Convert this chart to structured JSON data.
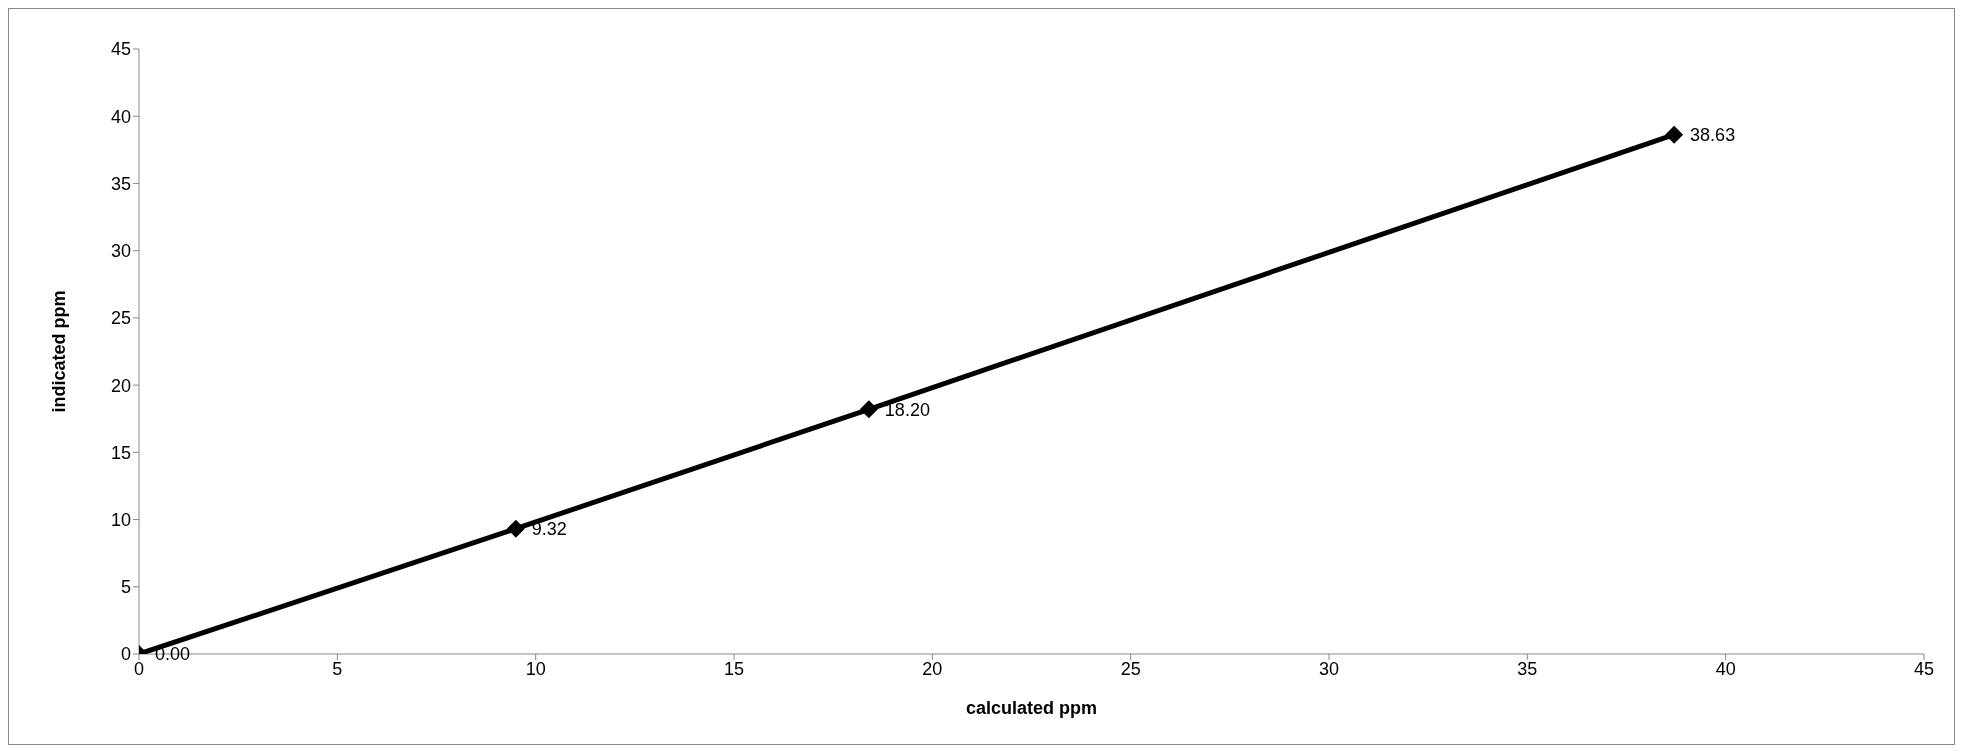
{
  "chart_data": {
    "type": "line",
    "xlabel": "calculated ppm",
    "ylabel": "indicated ppm",
    "x": [
      0,
      9.5,
      18.4,
      38.7
    ],
    "series": [
      {
        "color": "#000000",
        "values": [
          0,
          9.32,
          18.2,
          38.63
        ],
        "value_labels": [
          "0.00",
          "9.32",
          "18.20",
          "38.63"
        ]
      }
    ],
    "xlim": [
      0,
      45
    ],
    "xticks": [
      0,
      5,
      10,
      15,
      20,
      25,
      30,
      35,
      40,
      45
    ],
    "ylim": [
      0,
      45
    ],
    "yticks": [
      0,
      5,
      10,
      15,
      20,
      25,
      30,
      35,
      40,
      45
    ],
    "grid": false,
    "legend": false,
    "marker": "diamond",
    "line_style": "solid"
  }
}
